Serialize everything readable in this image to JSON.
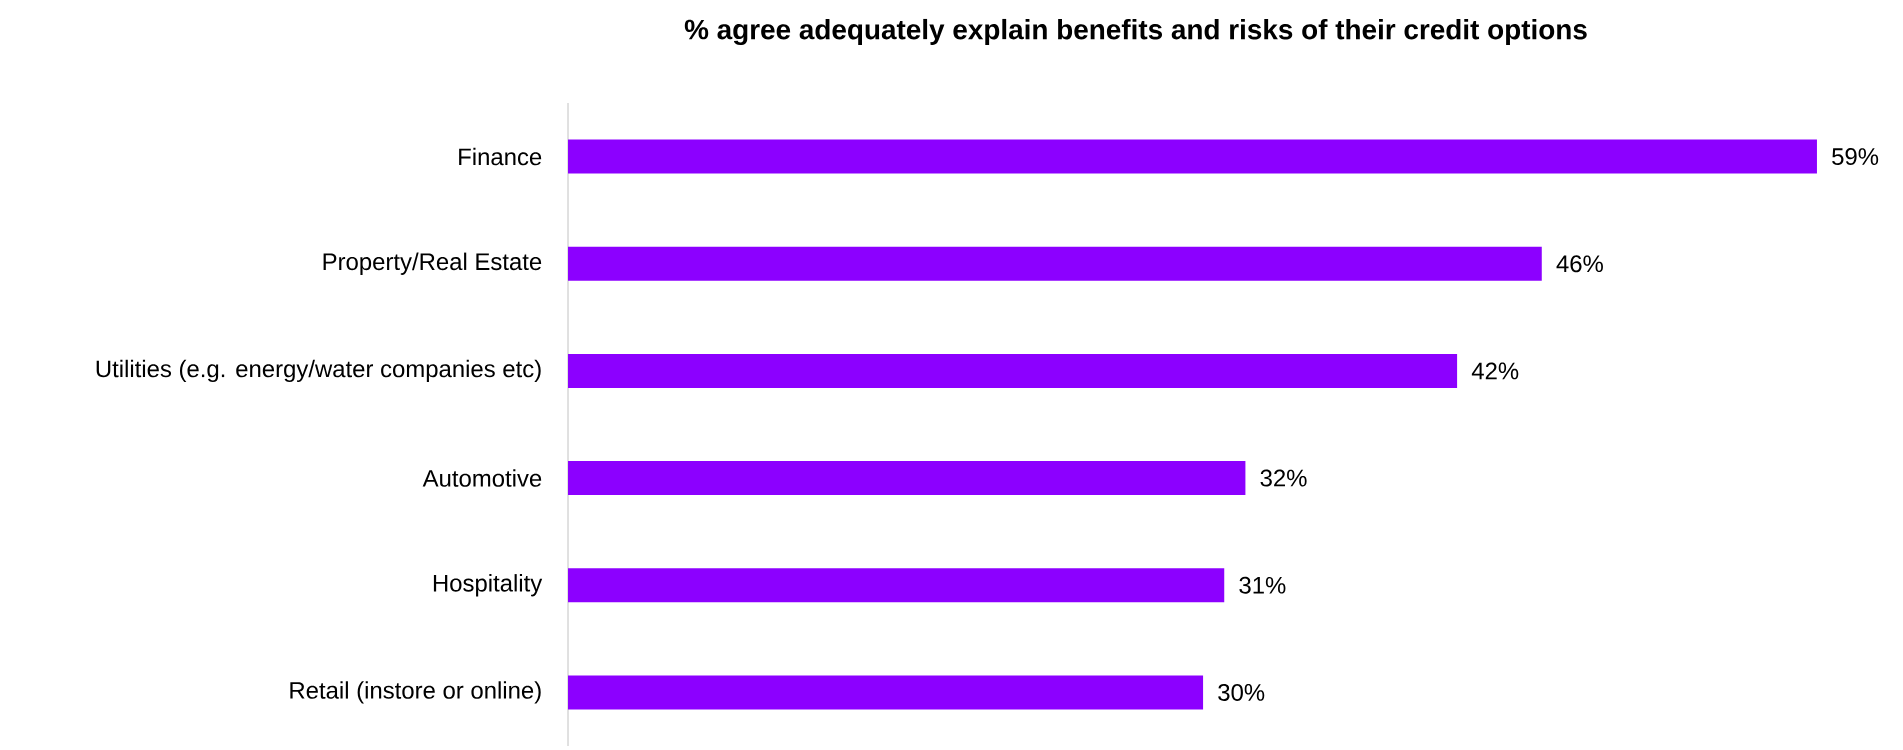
{
  "chart_data": {
    "type": "bar",
    "orientation": "horizontal",
    "title": "% agree adequately explain benefits and risks of their credit options",
    "categories": [
      "Finance",
      "Property/Real Estate",
      "Utilities (e.g. energy/water companies etc)",
      "Automotive",
      "Hospitality",
      "Retail (instore or online)"
    ],
    "values": [
      59,
      46,
      42,
      32,
      31,
      30
    ],
    "value_labels": [
      "59%",
      "46%",
      "42%",
      "32%",
      "31%",
      "30%"
    ],
    "color": "#8c00ff"
  }
}
